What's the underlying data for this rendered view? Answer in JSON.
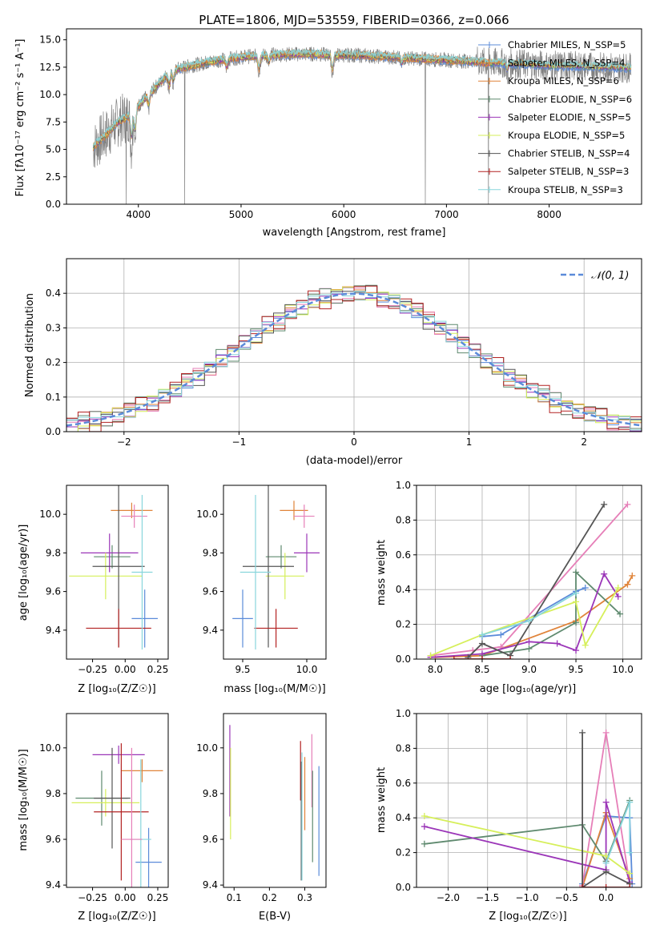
{
  "figure_title": "PLATE=1806, MJD=53559, FIBERID=0366, z=0.066",
  "colors": {
    "chabrier_miles": "#5b8bd9",
    "salpeter_miles": "#e0843a",
    "kroupa_miles": "#e0843a",
    "chabrier_elodie": "#5f8a6f",
    "salpeter_elodie": "#9b36b8",
    "kroupa_elodie": "#d6ef5a",
    "chabrier_stelib": "#555555",
    "salpeter_stelib": "#b32222",
    "kroupa_stelib": "#88d6dc",
    "kroupa_miles_weights": "#e67fb8",
    "normal_curve": "#5b8bd9",
    "data_spectrum": "#808080",
    "grid": "#b0b0b0"
  },
  "chart_data": [
    {
      "id": "spectrum",
      "type": "line",
      "title": "PLATE=1806, MJD=53559, FIBERID=0366, z=0.066",
      "xlabel": "wavelength [Angstrom, rest frame]",
      "ylabel": "Flux [fλ10⁻¹⁷ erg cm⁻² s⁻¹ A⁻¹]",
      "xlim": [
        3300,
        8900
      ],
      "ylim": [
        0,
        16
      ],
      "xticks": [
        "4000",
        "5000",
        "6000",
        "7000",
        "8000"
      ],
      "yticks": [
        "0.0",
        "2.5",
        "5.0",
        "7.5",
        "10.0",
        "12.5",
        "15.0"
      ],
      "xtick_values": [
        4000,
        5000,
        6000,
        7000,
        8000
      ],
      "ytick_values": [
        0,
        2.5,
        5,
        7.5,
        10,
        12.5,
        15
      ],
      "grid": false,
      "legend_position": "top-right",
      "legend": [
        "Chabrier MILES, N_SSP=5",
        "Salpeter MILES, N_SSP=4",
        "Kroupa MILES, N_SSP=6",
        "Chabrier ELODIE, N_SSP=6",
        "Salpeter ELODIE, N_SSP=5",
        "Kroupa ELODIE, N_SSP=5",
        "Chabrier STELIB, N_SSP=4",
        "Salpeter STELIB, N_SSP=3",
        "Kroupa STELIB, N_SSP=3"
      ],
      "continuum": {
        "x": [
          3560,
          3700,
          3800,
          3900,
          4000,
          4100,
          4200,
          4300,
          4400,
          4500,
          4700,
          4900,
          5100,
          5300,
          5500,
          5700,
          5900,
          6100,
          6300,
          6500,
          6700,
          6900,
          7100,
          7300,
          7400,
          7500,
          7700,
          7900,
          8100,
          8300,
          8500,
          8700,
          8800
        ],
        "y": [
          5.2,
          6.5,
          7.5,
          8.0,
          9.0,
          10.0,
          11.0,
          12.0,
          12.4,
          12.6,
          13.0,
          13.3,
          13.5,
          13.6,
          13.7,
          13.7,
          13.6,
          13.6,
          13.5,
          13.4,
          13.3,
          13.2,
          13.1,
          13.0,
          12.9,
          12.9,
          12.8,
          12.7,
          12.6,
          12.6,
          12.5,
          12.5,
          12.4
        ]
      },
      "absorption_features": [
        {
          "x": 3933,
          "depth": 3.0
        },
        {
          "x": 3968,
          "depth": 2.6
        },
        {
          "x": 4101,
          "depth": 1.3
        },
        {
          "x": 4300,
          "depth": 1.6
        },
        {
          "x": 4340,
          "depth": 1.2
        },
        {
          "x": 4861,
          "depth": 0.9
        },
        {
          "x": 5175,
          "depth": 1.6
        },
        {
          "x": 5270,
          "depth": 0.8
        },
        {
          "x": 5890,
          "depth": 1.8
        },
        {
          "x": 6563,
          "depth": 0.7
        },
        {
          "x": 7594,
          "depth": 0.8
        }
      ],
      "spikes": [
        {
          "x": 4450,
          "y": 0
        },
        {
          "x": 6795,
          "y": 0
        },
        {
          "x": 7410,
          "y": 0
        },
        {
          "x": 3880,
          "y": 0
        }
      ]
    },
    {
      "id": "residuals",
      "type": "bar",
      "xlabel": "(data-model)/error",
      "ylabel": "Normed distribution",
      "xlim": [
        -2.5,
        2.5
      ],
      "ylim": [
        0,
        0.5
      ],
      "xticks": [
        "−2",
        "−1",
        "0",
        "1",
        "2"
      ],
      "yticks": [
        "0.0",
        "0.1",
        "0.2",
        "0.3",
        "0.4"
      ],
      "xtick_values": [
        -2,
        -1,
        0,
        1,
        2
      ],
      "ytick_values": [
        0,
        0.1,
        0.2,
        0.3,
        0.4
      ],
      "grid": true,
      "legend_position": "top-right",
      "legend": [
        "𝒩(0, 1)"
      ],
      "bin_width": 0.1,
      "bin_start": -2.5,
      "n_bins": 50,
      "noise": [
        0.03,
        -0.02,
        0.015,
        -0.025,
        0.02,
        0.01,
        -0.015,
        0.025,
        -0.01,
        0.018,
        -0.022,
        0.012,
        0.03,
        -0.018,
        0.008,
        -0.03,
        0.022,
        0.005,
        -0.012,
        0.027
      ]
    },
    {
      "id": "age_vs_Z",
      "type": "scatter",
      "xlabel": "Z [log₁₀(Z/Z☉)]",
      "ylabel": "age  [log₁₀(age/yr)]",
      "xlim": [
        -0.45,
        0.33
      ],
      "ylim": [
        9.25,
        10.15
      ],
      "xticks": [
        "−0.25",
        "0.00",
        "0.25"
      ],
      "yticks": [
        "9.4",
        "9.6",
        "9.8",
        "10.0"
      ],
      "xtick_values": [
        -0.25,
        0.0,
        0.25
      ],
      "ytick_values": [
        9.4,
        9.6,
        9.8,
        10.0
      ],
      "grid": false,
      "points": [
        {
          "x": 0.15,
          "y": 9.46,
          "xerr": 0.1,
          "yerr": 0.15,
          "color": "chabrier_miles"
        },
        {
          "x": 0.05,
          "y": 10.02,
          "xerr": 0.16,
          "yerr": 0.04,
          "color": "salpeter_miles"
        },
        {
          "x": 0.07,
          "y": 9.99,
          "xerr": 0.1,
          "yerr": 0.06,
          "color": "kroupa_miles_weights"
        },
        {
          "x": -0.1,
          "y": 9.78,
          "xerr": 0.14,
          "yerr": 0.06,
          "color": "chabrier_elodie"
        },
        {
          "x": -0.12,
          "y": 9.8,
          "xerr": 0.22,
          "yerr": 0.1,
          "color": "salpeter_elodie"
        },
        {
          "x": -0.15,
          "y": 9.68,
          "xerr": 0.28,
          "yerr": 0.12,
          "color": "kroupa_elodie"
        },
        {
          "x": -0.05,
          "y": 9.73,
          "xerr": 0.2,
          "yerr": 0.42,
          "color": "chabrier_stelib"
        },
        {
          "x": -0.05,
          "y": 9.41,
          "xerr": 0.25,
          "yerr": 0.1,
          "color": "salpeter_stelib"
        },
        {
          "x": 0.13,
          "y": 9.7,
          "xerr": 0.08,
          "yerr": 0.4,
          "color": "kroupa_stelib"
        }
      ]
    },
    {
      "id": "age_vs_mass",
      "type": "scatter",
      "xlabel": "mass [log₁₀(M/M☉)]",
      "xlim": [
        9.35,
        10.15
      ],
      "ylim": [
        9.25,
        10.15
      ],
      "xticks": [
        "9.5",
        "10.0"
      ],
      "yticks": [
        "9.4",
        "9.6",
        "9.8",
        "10.0"
      ],
      "xtick_values": [
        9.5,
        10.0
      ],
      "ytick_values": [
        9.4,
        9.6,
        9.8,
        10.0
      ],
      "grid": false,
      "points": [
        {
          "x": 9.5,
          "y": 9.46,
          "xerr": 0.08,
          "yerr": 0.15,
          "color": "chabrier_miles"
        },
        {
          "x": 9.9,
          "y": 10.02,
          "xerr": 0.11,
          "yerr": 0.05,
          "color": "salpeter_miles"
        },
        {
          "x": 9.98,
          "y": 9.99,
          "xerr": 0.08,
          "yerr": 0.06,
          "color": "kroupa_miles_weights"
        },
        {
          "x": 9.8,
          "y": 9.78,
          "xerr": 0.12,
          "yerr": 0.06,
          "color": "chabrier_elodie"
        },
        {
          "x": 10.0,
          "y": 9.8,
          "xerr": 0.1,
          "yerr": 0.1,
          "color": "salpeter_elodie"
        },
        {
          "x": 9.83,
          "y": 9.68,
          "xerr": 0.15,
          "yerr": 0.12,
          "color": "kroupa_elodie"
        },
        {
          "x": 9.7,
          "y": 9.73,
          "xerr": 0.2,
          "yerr": 0.42,
          "color": "chabrier_stelib"
        },
        {
          "x": 9.76,
          "y": 9.41,
          "xerr": 0.17,
          "yerr": 0.1,
          "color": "salpeter_stelib"
        },
        {
          "x": 9.6,
          "y": 9.7,
          "xerr": 0.12,
          "yerr": 0.4,
          "color": "kroupa_stelib"
        }
      ]
    },
    {
      "id": "weights_vs_age",
      "type": "line",
      "xlabel": "age  [log₁₀(age/yr)]",
      "ylabel": "mass weight",
      "xlim": [
        7.8,
        10.2
      ],
      "ylim": [
        0,
        1
      ],
      "xticks": [
        "8.0",
        "8.5",
        "9.0",
        "9.5",
        "10.0"
      ],
      "yticks": [
        "0.0",
        "0.2",
        "0.4",
        "0.6",
        "0.8",
        "1.0"
      ],
      "xtick_values": [
        8.0,
        8.5,
        9.0,
        9.5,
        10.0
      ],
      "ytick_values": [
        0,
        0.2,
        0.4,
        0.6,
        0.8,
        1.0
      ],
      "grid": true,
      "series": [
        {
          "color": "chabrier_miles",
          "x": [
            8.5,
            8.7,
            9.5,
            9.6
          ],
          "y": [
            0.13,
            0.14,
            0.39,
            0.41
          ]
        },
        {
          "color": "salpeter_miles",
          "x": [
            8.0,
            8.5,
            9.5,
            10.05,
            10.1
          ],
          "y": [
            0.01,
            0.02,
            0.22,
            0.43,
            0.48
          ]
        },
        {
          "color": "kroupa_miles_weights",
          "x": [
            7.95,
            8.4,
            8.7,
            10.05
          ],
          "y": [
            0.02,
            0.05,
            0.07,
            0.89
          ]
        },
        {
          "color": "chabrier_elodie",
          "x": [
            8.5,
            9.0,
            9.5,
            9.5,
            9.97
          ],
          "y": [
            0.02,
            0.06,
            0.21,
            0.5,
            0.26
          ]
        },
        {
          "color": "salpeter_elodie",
          "x": [
            7.95,
            8.5,
            9.0,
            9.3,
            9.5,
            9.8,
            9.95
          ],
          "y": [
            0.01,
            0.03,
            0.1,
            0.09,
            0.05,
            0.49,
            0.36
          ]
        },
        {
          "color": "kroupa_elodie",
          "x": [
            7.95,
            8.5,
            9.5,
            9.6,
            9.95
          ],
          "y": [
            0.02,
            0.14,
            0.33,
            0.08,
            0.41
          ]
        },
        {
          "color": "chabrier_stelib",
          "x": [
            8.35,
            8.5,
            8.8,
            9.8
          ],
          "y": [
            0.01,
            0.09,
            0.02,
            0.89
          ]
        },
        {
          "color": "salpeter_stelib",
          "x": [
            8.2,
            8.5,
            8.8
          ],
          "y": [
            0.0,
            0.0,
            0.0
          ]
        },
        {
          "color": "kroupa_stelib",
          "x": [
            8.5,
            9.0,
            9.5
          ],
          "y": [
            0.14,
            0.22,
            0.38
          ]
        }
      ]
    },
    {
      "id": "mass_vs_Z",
      "type": "scatter",
      "xlabel": "Z [log₁₀(Z/Z☉)]",
      "ylabel": "mass [log₁₀(M/M☉)]",
      "xlim": [
        -0.45,
        0.33
      ],
      "ylim": [
        9.39,
        10.15
      ],
      "xticks": [
        "−0.25",
        "0.00",
        "0.25"
      ],
      "yticks": [
        "9.4",
        "9.6",
        "9.8",
        "10.0"
      ],
      "xtick_values": [
        -0.25,
        0.0,
        0.25
      ],
      "ytick_values": [
        9.4,
        9.6,
        9.8,
        10.0
      ],
      "grid": false,
      "points": [
        {
          "x": 0.18,
          "y": 9.5,
          "xerr": 0.1,
          "yerr": 0.15,
          "color": "chabrier_miles"
        },
        {
          "x": 0.13,
          "y": 9.9,
          "xerr": 0.16,
          "yerr": 0.05,
          "color": "salpeter_miles"
        },
        {
          "x": -0.05,
          "y": 9.97,
          "xerr": 0.2,
          "yerr": 0.04,
          "color": "salpeter_elodie"
        },
        {
          "x": -0.18,
          "y": 9.78,
          "xerr": 0.2,
          "yerr": 0.12,
          "color": "chabrier_elodie"
        },
        {
          "x": -0.15,
          "y": 9.76,
          "xerr": 0.26,
          "yerr": 0.06,
          "color": "kroupa_elodie"
        },
        {
          "x": -0.1,
          "y": 9.78,
          "xerr": 0.14,
          "yerr": 0.22,
          "color": "chabrier_stelib"
        },
        {
          "x": -0.03,
          "y": 9.72,
          "xerr": 0.21,
          "yerr": 0.3,
          "color": "salpeter_stelib"
        },
        {
          "x": 0.12,
          "y": 9.6,
          "xerr": 0.08,
          "yerr": 0.35,
          "color": "kroupa_stelib"
        },
        {
          "x": 0.05,
          "y": 9.6,
          "xerr": 0.08,
          "yerr": 0.4,
          "color": "kroupa_miles_weights"
        }
      ]
    },
    {
      "id": "mass_vs_EBV",
      "type": "scatter",
      "xlabel": "E(B-V)",
      "xlim": [
        0.07,
        0.36
      ],
      "ylim": [
        9.39,
        10.15
      ],
      "xticks": [
        "0.1",
        "0.2",
        "0.3"
      ],
      "yticks": [
        "9.4",
        "9.6",
        "9.8",
        "10.0"
      ],
      "xtick_values": [
        0.1,
        0.2,
        0.3
      ],
      "ytick_values": [
        9.4,
        9.6,
        9.8,
        10.0
      ],
      "grid": false,
      "points": [
        {
          "x": 0.088,
          "y": 9.9,
          "yerr": 0.2,
          "color": "salpeter_elodie"
        },
        {
          "x": 0.09,
          "y": 9.8,
          "yerr": 0.2,
          "color": "kroupa_elodie"
        },
        {
          "x": 0.288,
          "y": 9.9,
          "yerr": 0.13,
          "color": "salpeter_stelib"
        },
        {
          "x": 0.29,
          "y": 9.68,
          "yerr": 0.26,
          "color": "chabrier_stelib"
        },
        {
          "x": 0.292,
          "y": 9.7,
          "yerr": 0.28,
          "color": "kroupa_stelib"
        },
        {
          "x": 0.3,
          "y": 9.8,
          "yerr": 0.16,
          "color": "salpeter_miles"
        },
        {
          "x": 0.32,
          "y": 9.9,
          "yerr": 0.16,
          "color": "kroupa_miles_weights"
        },
        {
          "x": 0.322,
          "y": 9.7,
          "yerr": 0.2,
          "color": "chabrier_elodie"
        },
        {
          "x": 0.34,
          "y": 9.68,
          "yerr": 0.24,
          "color": "chabrier_miles"
        }
      ]
    },
    {
      "id": "weights_vs_Z",
      "type": "line",
      "xlabel": "Z [log₁₀(Z/Z☉)]",
      "ylabel": "mass weight",
      "xlim": [
        -2.4,
        0.45
      ],
      "ylim": [
        0,
        1
      ],
      "xticks": [
        "−2.0",
        "−1.5",
        "−1.0",
        "−0.5",
        "0.0"
      ],
      "yticks": [
        "0.0",
        "0.2",
        "0.4",
        "0.6",
        "0.8",
        "1.0"
      ],
      "xtick_values": [
        -2.0,
        -1.5,
        -1.0,
        -0.5,
        0.0
      ],
      "ytick_values": [
        0,
        0.2,
        0.4,
        0.6,
        0.8,
        1.0
      ],
      "grid": true,
      "series": [
        {
          "color": "chabrier_miles",
          "x": [
            -0.3,
            0.0,
            0.3,
            0.33
          ],
          "y": [
            0.02,
            0.41,
            0.4,
            0.02
          ]
        },
        {
          "color": "salpeter_miles",
          "x": [
            -0.3,
            0.0,
            0.3
          ],
          "y": [
            0.0,
            0.43,
            0.05
          ]
        },
        {
          "color": "kroupa_miles_weights",
          "x": [
            -0.3,
            0.0,
            0.3
          ],
          "y": [
            0.01,
            0.89,
            0.02
          ]
        },
        {
          "color": "chabrier_elodie",
          "x": [
            -2.3,
            -0.3,
            0.0,
            0.3
          ],
          "y": [
            0.25,
            0.36,
            0.15,
            0.5
          ]
        },
        {
          "color": "salpeter_elodie",
          "x": [
            -2.3,
            0.0,
            0.0,
            0.3
          ],
          "y": [
            0.35,
            0.1,
            0.49,
            0.03
          ]
        },
        {
          "color": "kroupa_elodie",
          "x": [
            -2.3,
            0.0,
            0.3
          ],
          "y": [
            0.41,
            0.18,
            0.08
          ]
        },
        {
          "color": "chabrier_stelib",
          "x": [
            -0.3,
            -0.3,
            0.0,
            0.3
          ],
          "y": [
            0.89,
            0.0,
            0.09,
            0.02
          ]
        },
        {
          "color": "salpeter_stelib",
          "x": [
            -0.3,
            0.0,
            0.3
          ],
          "y": [
            0.0,
            0.0,
            0.0
          ]
        },
        {
          "color": "kroupa_stelib",
          "x": [
            0.0,
            0.3,
            0.3
          ],
          "y": [
            0.14,
            0.49,
            0.2
          ]
        }
      ]
    }
  ]
}
